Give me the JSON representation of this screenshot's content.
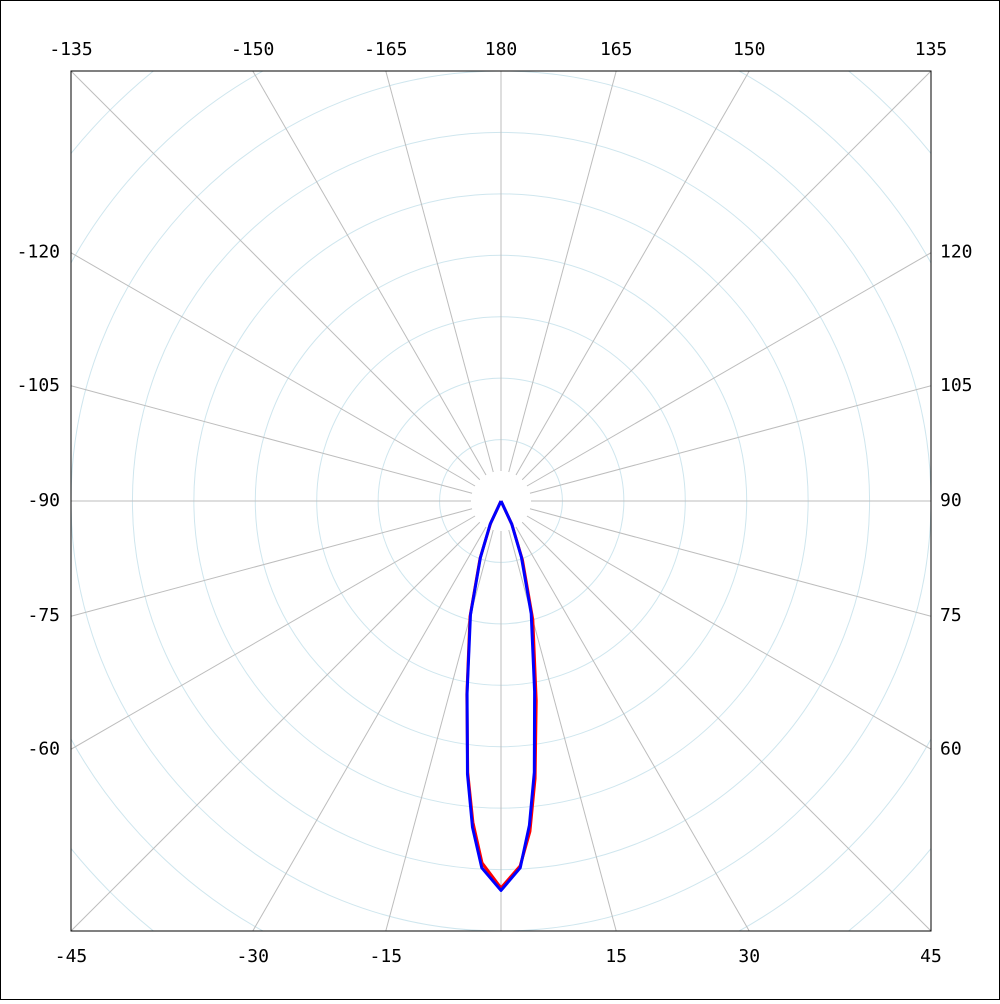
{
  "chart_data": {
    "type": "polar",
    "x": [
      -90,
      -25,
      -20,
      -15,
      -10,
      -7,
      -5,
      -3,
      0,
      3,
      5,
      7,
      10,
      15,
      20,
      25,
      90
    ],
    "series": [
      {
        "color": "#ff0000",
        "values": [
          0,
          0.4,
          1.0,
          1.95,
          3.2,
          4.45,
          5.25,
          5.9,
          6.3,
          5.95,
          5.4,
          4.55,
          3.3,
          2.0,
          1.02,
          0.42,
          0
        ]
      },
      {
        "color": "#0000ff",
        "values": [
          0,
          0.42,
          0.98,
          1.92,
          3.18,
          4.48,
          5.33,
          5.98,
          6.34,
          5.98,
          5.3,
          4.45,
          3.15,
          1.9,
          0.97,
          0.41,
          0
        ]
      }
    ],
    "rlim": [
      0,
      7
    ],
    "rticks": [
      1,
      2,
      3,
      4,
      5,
      6,
      7,
      8,
      9
    ],
    "thetaticks": [
      -135,
      -150,
      -165,
      180,
      165,
      150,
      135,
      120,
      105,
      90,
      75,
      60,
      45,
      30,
      15,
      {
        "value": 0,
        "label": null
      },
      -15,
      -30,
      -45,
      -60,
      -75,
      -90,
      -105,
      -120
    ],
    "grid": true
  }
}
